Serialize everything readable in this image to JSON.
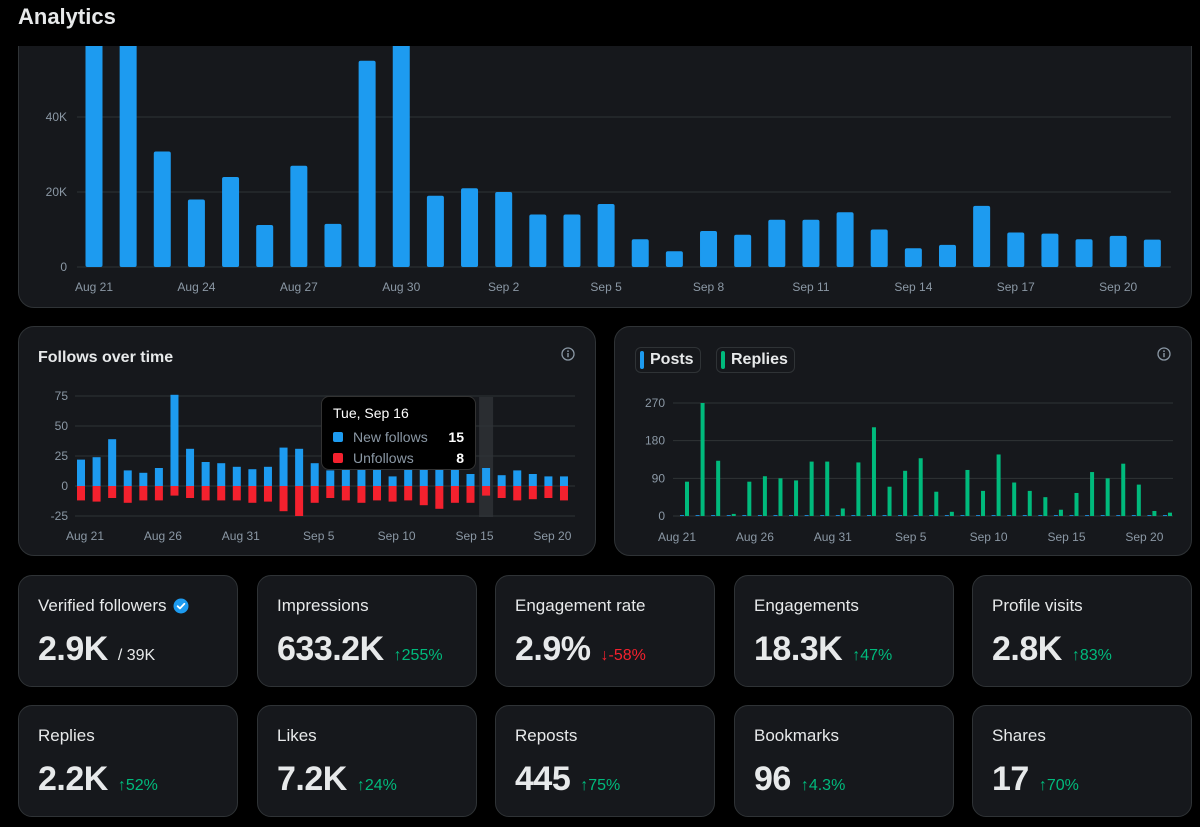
{
  "page": {
    "title": "Analytics"
  },
  "colors": {
    "blue": "#1d9bf0",
    "red": "#f4212e",
    "green": "#00ba7c",
    "grid": "#2f3336",
    "axis": "#8b98a5"
  },
  "chart_data": [
    {
      "id": "impressions",
      "type": "bar",
      "title": "",
      "categories": [
        "Aug 21",
        "Aug 22",
        "Aug 23",
        "Aug 24",
        "Aug 25",
        "Aug 26",
        "Aug 27",
        "Aug 28",
        "Aug 29",
        "Aug 30",
        "Aug 31",
        "Sep 1",
        "Sep 2",
        "Sep 3",
        "Sep 4",
        "Sep 5",
        "Sep 6",
        "Sep 7",
        "Sep 8",
        "Sep 9",
        "Sep 10",
        "Sep 11",
        "Sep 12",
        "Sep 13",
        "Sep 14",
        "Sep 15",
        "Sep 16",
        "Sep 17",
        "Sep 18",
        "Sep 19",
        "Sep 20",
        "Sep 21"
      ],
      "values": [
        60000,
        60000,
        30800,
        18000,
        24000,
        11200,
        27000,
        11500,
        55000,
        60000,
        19000,
        21000,
        20000,
        14000,
        14000,
        16800,
        7400,
        4200,
        9600,
        8600,
        12600,
        12600,
        14600,
        10000,
        5000,
        5900,
        16300,
        9200,
        8900,
        7400,
        8300,
        7300
      ],
      "tick_labels": [
        "Aug 21",
        "Aug 24",
        "Aug 27",
        "Aug 30",
        "Sep 2",
        "Sep 5",
        "Sep 8",
        "Sep 11",
        "Sep 14",
        "Sep 17",
        "Sep 20"
      ],
      "y_ticks": [
        "0",
        "20K",
        "40K"
      ],
      "y_tick_values": [
        0,
        20000,
        40000
      ],
      "ylim": [
        0,
        58000
      ]
    },
    {
      "id": "follows",
      "type": "bar",
      "title": "Follows over time",
      "categories": [
        "Aug 21",
        "Aug 22",
        "Aug 23",
        "Aug 24",
        "Aug 25",
        "Aug 26",
        "Aug 27",
        "Aug 28",
        "Aug 29",
        "Aug 30",
        "Aug 31",
        "Sep 1",
        "Sep 2",
        "Sep 3",
        "Sep 4",
        "Sep 5",
        "Sep 6",
        "Sep 7",
        "Sep 8",
        "Sep 9",
        "Sep 10",
        "Sep 11",
        "Sep 12",
        "Sep 13",
        "Sep 14",
        "Sep 15",
        "Sep 16",
        "Sep 17",
        "Sep 18",
        "Sep 19",
        "Sep 20",
        "Sep 21"
      ],
      "series": [
        {
          "name": "New follows",
          "values": [
            22,
            24,
            39,
            13,
            11,
            15,
            76,
            31,
            20,
            19,
            16,
            14,
            16,
            32,
            31,
            19,
            13,
            22,
            24,
            16,
            8,
            20,
            20,
            22,
            16,
            10,
            15,
            9,
            13,
            10,
            8,
            8
          ]
        },
        {
          "name": "Unfollows",
          "values": [
            -12,
            -13,
            -10,
            -14,
            -12,
            -12,
            -8,
            -10,
            -12,
            -12,
            -12,
            -14,
            -13,
            -21,
            -25,
            -14,
            -10,
            -12,
            -14,
            -12,
            -13,
            -12,
            -16,
            -19,
            -14,
            -14,
            -8,
            -10,
            -12,
            -11,
            -10,
            -12
          ]
        }
      ],
      "tick_labels": [
        "Aug 21",
        "Aug 26",
        "Aug 31",
        "Sep 5",
        "Sep 10",
        "Sep 15",
        "Sep 20"
      ],
      "y_ticks": [
        "-25",
        "0",
        "25",
        "50",
        "75"
      ],
      "y_tick_values": [
        -25,
        0,
        25,
        50,
        75
      ],
      "ylim": [
        -28,
        78
      ],
      "highlight_index": 26
    },
    {
      "id": "posts_replies",
      "type": "bar",
      "title": "",
      "categories": [
        "Aug 21",
        "Aug 22",
        "Aug 23",
        "Aug 24",
        "Aug 25",
        "Aug 26",
        "Aug 27",
        "Aug 28",
        "Aug 29",
        "Aug 30",
        "Aug 31",
        "Sep 1",
        "Sep 2",
        "Sep 3",
        "Sep 4",
        "Sep 5",
        "Sep 6",
        "Sep 7",
        "Sep 8",
        "Sep 9",
        "Sep 10",
        "Sep 11",
        "Sep 12",
        "Sep 13",
        "Sep 14",
        "Sep 15",
        "Sep 16",
        "Sep 17",
        "Sep 18",
        "Sep 19",
        "Sep 20",
        "Sep 21"
      ],
      "series": [
        {
          "name": "Posts",
          "values": [
            2,
            2,
            2,
            2,
            2,
            2,
            2,
            2,
            2,
            2,
            2,
            2,
            2,
            2,
            2,
            2,
            2,
            2,
            2,
            2,
            2,
            2,
            2,
            2,
            2,
            2,
            2,
            2,
            2,
            2,
            2,
            2
          ]
        },
        {
          "name": "Replies",
          "values": [
            82,
            270,
            132,
            5,
            82,
            95,
            90,
            85,
            130,
            130,
            18,
            128,
            212,
            70,
            108,
            138,
            58,
            10,
            110,
            60,
            147,
            80,
            60,
            45,
            15,
            55,
            105,
            90,
            125,
            75,
            12,
            8
          ]
        }
      ],
      "tick_labels": [
        "Aug 21",
        "Aug 26",
        "Aug 31",
        "Sep 5",
        "Sep 10",
        "Sep 15",
        "Sep 20"
      ],
      "y_ticks": [
        "0",
        "90",
        "180",
        "270"
      ],
      "y_tick_values": [
        0,
        90,
        180,
        270
      ],
      "ylim": [
        0,
        280
      ]
    }
  ],
  "follows_panel": {
    "title": "Follows over time"
  },
  "tooltip": {
    "date": "Tue, Sep 16",
    "rows": [
      {
        "label": "New follows",
        "value": "15"
      },
      {
        "label": "Unfollows",
        "value": "8"
      }
    ]
  },
  "posts_panel": {
    "legend": [
      "Posts",
      "Replies"
    ]
  },
  "stats": [
    {
      "label": "Verified followers",
      "value": "2.9K",
      "extra": "/ 39K",
      "change": "",
      "dir": "none",
      "verified": true
    },
    {
      "label": "Impressions",
      "value": "633.2K",
      "extra": "",
      "change": "255%",
      "dir": "up"
    },
    {
      "label": "Engagement rate",
      "value": "2.9%",
      "extra": "",
      "change": "-58%",
      "dir": "down"
    },
    {
      "label": "Engagements",
      "value": "18.3K",
      "extra": "",
      "change": "47%",
      "dir": "up"
    },
    {
      "label": "Profile visits",
      "value": "2.8K",
      "extra": "",
      "change": "83%",
      "dir": "up"
    },
    {
      "label": "Replies",
      "value": "2.2K",
      "extra": "",
      "change": "52%",
      "dir": "up"
    },
    {
      "label": "Likes",
      "value": "7.2K",
      "extra": "",
      "change": "24%",
      "dir": "up"
    },
    {
      "label": "Reposts",
      "value": "445",
      "extra": "",
      "change": "75%",
      "dir": "up"
    },
    {
      "label": "Bookmarks",
      "value": "96",
      "extra": "",
      "change": "4.3%",
      "dir": "up"
    },
    {
      "label": "Shares",
      "value": "17",
      "extra": "",
      "change": "70%",
      "dir": "up"
    }
  ]
}
